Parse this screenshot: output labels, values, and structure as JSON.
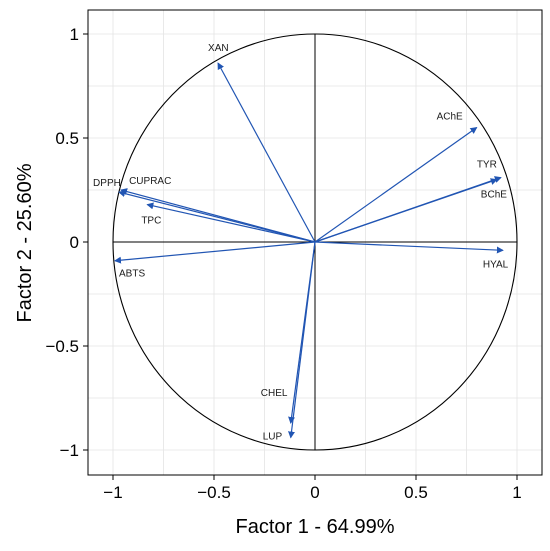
{
  "chart_data": {
    "type": "scatter",
    "subtype": "pca-correlation-circle",
    "title": "",
    "xlabel": "Factor 1 - 64.99%",
    "ylabel": "Factor 2 - 25.60%",
    "xlim": [
      -1.1,
      1.02
    ],
    "ylim": [
      -1.07,
      1.12
    ],
    "xticks": [
      -1,
      -0.5,
      0,
      0.5,
      1
    ],
    "yticks": [
      -1,
      -0.5,
      0,
      0.5,
      1
    ],
    "xtick_labels": [
      "−1",
      "−0.5",
      "0",
      "0.5",
      "1"
    ],
    "ytick_labels": [
      "−1",
      "−0.5",
      "0",
      "0.5",
      "1"
    ],
    "grid": true,
    "unit_circle": true,
    "arrow_color": "#2155b3",
    "series": [
      {
        "label": "XAN",
        "x": -0.48,
        "y": 0.86
      },
      {
        "label": "AChE",
        "x": 0.8,
        "y": 0.55
      },
      {
        "label": "TYR",
        "x": 0.92,
        "y": 0.31
      },
      {
        "label": "BChE",
        "x": 0.9,
        "y": 0.3
      },
      {
        "label": "HYAL",
        "x": 0.93,
        "y": -0.04
      },
      {
        "label": "CUPRAC",
        "x": -0.96,
        "y": 0.25
      },
      {
        "label": "DPPH",
        "x": -0.97,
        "y": 0.24
      },
      {
        "label": "TPC",
        "x": -0.83,
        "y": 0.18
      },
      {
        "label": "ABTS",
        "x": -0.99,
        "y": -0.09
      },
      {
        "label": "CHEL",
        "x": -0.12,
        "y": -0.87
      },
      {
        "label": "LUP",
        "x": -0.12,
        "y": -0.94
      }
    ]
  }
}
